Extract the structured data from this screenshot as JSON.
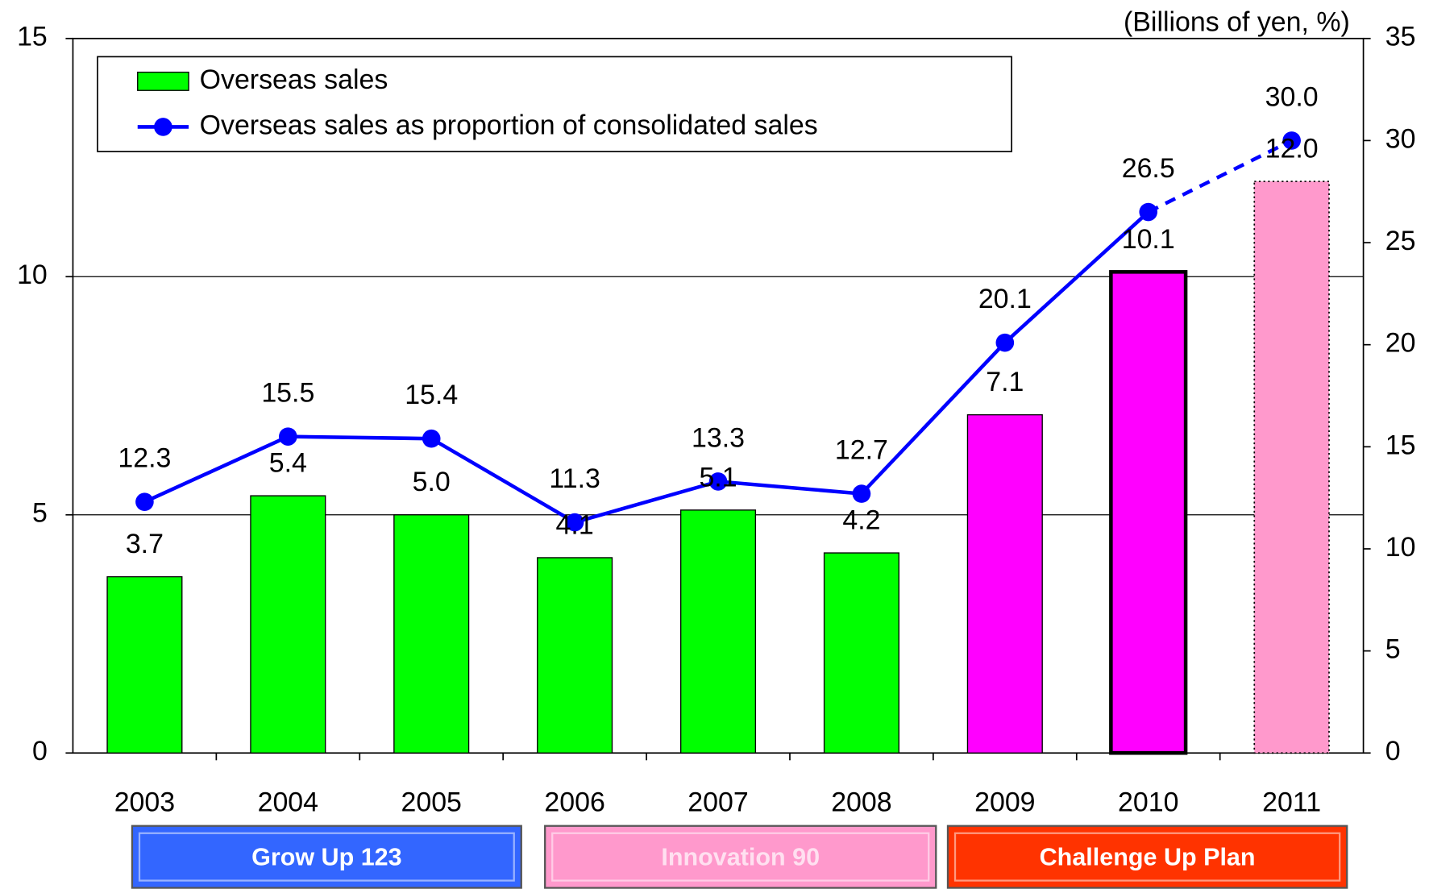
{
  "chart_data": {
    "type": "bar_line",
    "unit_label": "(Billions of yen, %)",
    "categories": [
      "2003",
      "2004",
      "2005",
      "2006",
      "2007",
      "2008",
      "2009",
      "2010",
      "2011"
    ],
    "series": [
      {
        "name": "Overseas sales",
        "type": "bar",
        "values": [
          3.7,
          5.4,
          5.0,
          4.1,
          5.1,
          4.2,
          7.1,
          10.1,
          12.0
        ],
        "value_labels": [
          "3.7",
          "5.4",
          "5.0",
          "4.1",
          "5.1",
          "4.2",
          "7.1",
          "10.1",
          "12.0"
        ],
        "colors": [
          "#00ff00",
          "#00ff00",
          "#00ff00",
          "#00ff00",
          "#00ff00",
          "#00ff00",
          "#ff00ff",
          "#ff00ff",
          "#ff99cc"
        ],
        "edge_styles": [
          "thin",
          "thin",
          "thin",
          "thin",
          "thin",
          "thin",
          "thin",
          "thick",
          "dotted"
        ]
      },
      {
        "name": "Overseas sales as proportion of consolidated sales",
        "type": "line",
        "axis": "y2",
        "color": "#0000ff",
        "values": [
          12.3,
          15.5,
          15.4,
          11.3,
          13.3,
          12.7,
          20.1,
          26.5,
          30.0
        ],
        "value_labels": [
          "12.3",
          "15.5",
          "15.4",
          "11.3",
          "13.3",
          "12.7",
          "20.1",
          "26.5",
          "30.0"
        ],
        "dashed_last_segment": true
      }
    ],
    "ylim": [
      0,
      15
    ],
    "yticks": [
      0,
      5,
      10,
      15
    ],
    "y2lim": [
      0,
      35
    ],
    "y2ticks": [
      0,
      5,
      10,
      15,
      20,
      25,
      30,
      35
    ],
    "grid": true,
    "legend": "top-left",
    "plan_periods": [
      {
        "name": "Grow Up 123",
        "color": "#3366ff",
        "text_color": "#ffffff"
      },
      {
        "name": "Innovation 90",
        "color": "#ff99cc",
        "text_color": "#ffe0f0"
      },
      {
        "name": "Challenge Up Plan",
        "color": "#ff3300",
        "text_color": "#ffffff"
      }
    ]
  }
}
